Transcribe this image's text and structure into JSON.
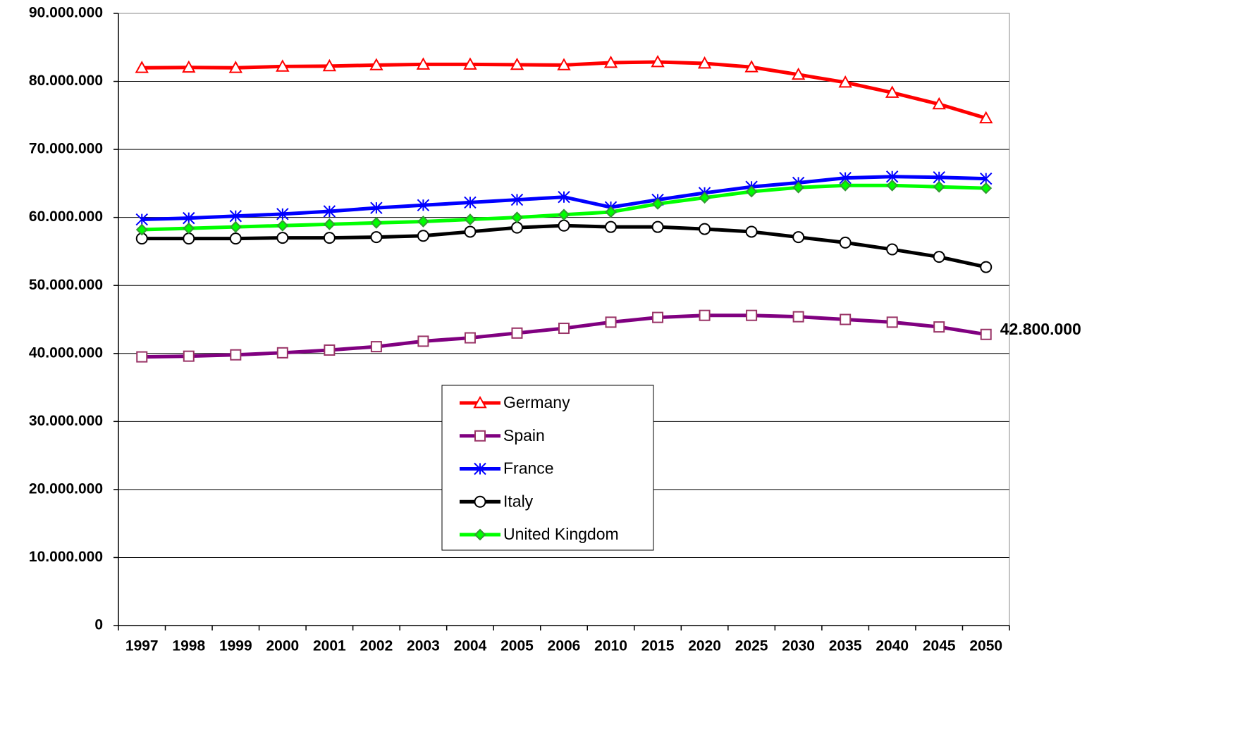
{
  "chart_data": {
    "type": "line",
    "categories": [
      "1997",
      "1998",
      "1999",
      "2000",
      "2001",
      "2002",
      "2003",
      "2004",
      "2005",
      "2006",
      "2010",
      "2015",
      "2020",
      "2025",
      "2030",
      "2035",
      "2040",
      "2045",
      "2050"
    ],
    "ylim": [
      0,
      90000000
    ],
    "yticks": [
      0,
      {
        "value": 10000000,
        "label": "10.000.000"
      },
      {
        "value": 20000000,
        "label": "20.000.000"
      },
      {
        "value": 30000000,
        "label": "30.000.000"
      },
      {
        "value": 40000000,
        "label": "40.000.000"
      },
      {
        "value": 50000000,
        "label": "50.000.000"
      },
      {
        "value": 60000000,
        "label": "60.000.000"
      },
      {
        "value": 70000000,
        "label": "70.000.000"
      },
      {
        "value": 80000000,
        "label": "80.000.000"
      },
      {
        "value": 90000000,
        "label": "90.000.000"
      }
    ],
    "grid": true,
    "series": [
      {
        "name": "Germany",
        "color": "#ff0000",
        "marker": "triangle",
        "marker_color": "#ff0000",
        "values": [
          82000000,
          82050000,
          82000000,
          82200000,
          82250000,
          82400000,
          82500000,
          82500000,
          82450000,
          82400000,
          82750000,
          82850000,
          82650000,
          82100000,
          81000000,
          79850000,
          78350000,
          76650000,
          74600000
        ]
      },
      {
        "name": "Spain",
        "color": "#800080",
        "marker": "square",
        "marker_color": "#993366",
        "values": [
          39500000,
          39600000,
          39800000,
          40100000,
          40500000,
          41000000,
          41800000,
          42300000,
          43000000,
          43700000,
          44600000,
          45300000,
          45600000,
          45600000,
          45400000,
          45000000,
          44600000,
          43900000,
          42800000
        ],
        "value_labels": [
          null,
          null,
          null,
          null,
          null,
          null,
          null,
          null,
          null,
          null,
          null,
          null,
          null,
          null,
          null,
          null,
          null,
          null,
          "42.800.000"
        ]
      },
      {
        "name": "France",
        "color": "#0000ff",
        "marker": "asterisk",
        "marker_color": "#0000ff",
        "values": [
          59700000,
          59900000,
          60200000,
          60500000,
          60900000,
          61400000,
          61800000,
          62200000,
          62600000,
          63000000,
          61500000,
          62600000,
          63600000,
          64500000,
          65100000,
          65800000,
          66000000,
          65900000,
          65700000
        ]
      },
      {
        "name": "Italy",
        "color": "#000000",
        "marker": "circle",
        "marker_color": "#000000",
        "values": [
          56900000,
          56900000,
          56900000,
          57000000,
          57000000,
          57100000,
          57300000,
          57900000,
          58500000,
          58800000,
          58600000,
          58600000,
          58300000,
          57900000,
          57100000,
          56300000,
          55300000,
          54200000,
          52700000
        ]
      },
      {
        "name": "United Kingdom",
        "color": "#00ff00",
        "marker": "diamond",
        "marker_color": "#339933",
        "values": [
          58200000,
          58400000,
          58600000,
          58800000,
          59000000,
          59200000,
          59400000,
          59700000,
          60000000,
          60400000,
          60800000,
          62000000,
          62900000,
          63800000,
          64400000,
          64700000,
          64700000,
          64500000,
          64300000
        ]
      }
    ]
  }
}
